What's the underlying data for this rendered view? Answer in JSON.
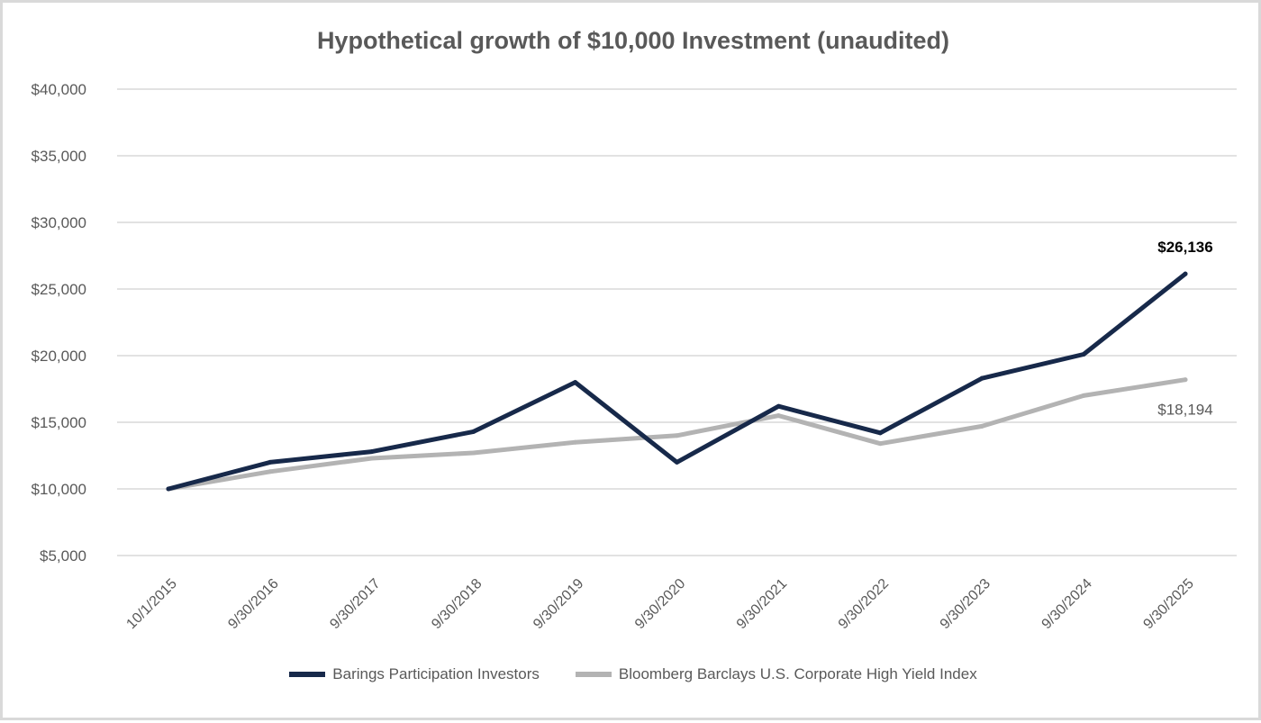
{
  "chart_data": {
    "type": "line",
    "title": "Hypothetical growth of $10,000 Investment (unaudited)",
    "xlabel": "",
    "ylabel": "",
    "categories": [
      "10/1/2015",
      "9/30/2016",
      "9/30/2017",
      "9/30/2018",
      "9/30/2019",
      "9/30/2020",
      "9/30/2021",
      "9/30/2022",
      "9/30/2023",
      "9/30/2024",
      "9/30/2025"
    ],
    "y_ticks": [
      5000,
      10000,
      15000,
      20000,
      25000,
      30000,
      35000,
      40000
    ],
    "y_tick_labels": [
      "$5,000",
      "$10,000",
      "$15,000",
      "$20,000",
      "$25,000",
      "$30,000",
      "$35,000",
      "$40,000"
    ],
    "ylim": [
      5000,
      40000
    ],
    "grid": true,
    "legend_position": "bottom",
    "series": [
      {
        "name": "Barings Participation Investors",
        "color": "#17294a",
        "values": [
          10000,
          12000,
          12800,
          14300,
          18000,
          12000,
          16200,
          14200,
          18300,
          20100,
          26136
        ],
        "end_label": "$26,136"
      },
      {
        "name": "Bloomberg Barclays U.S. Corporate High Yield Index",
        "color": "#b3b3b3",
        "values": [
          10000,
          11300,
          12300,
          12700,
          13500,
          14000,
          15500,
          13400,
          14700,
          17000,
          18194
        ],
        "end_label": "$18,194"
      }
    ]
  }
}
